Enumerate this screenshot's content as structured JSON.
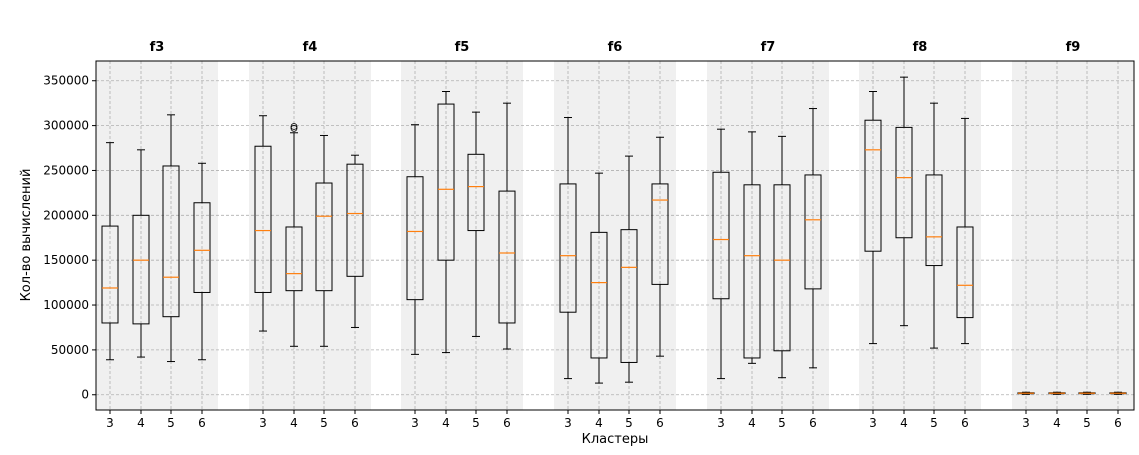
{
  "chart_data": {
    "type": "boxplot",
    "ylabel": "Кол-во вычислений",
    "xlabel": "Кластеры",
    "ylim": [
      -17000,
      372000
    ],
    "yticks": [
      0,
      50000,
      100000,
      150000,
      200000,
      250000,
      300000,
      350000
    ],
    "ytick_labels": [
      "0",
      "50000",
      "100000",
      "150000",
      "200000",
      "250000",
      "300000",
      "350000"
    ],
    "grid": true,
    "group_background": "#f0f0f0",
    "box_color": "#000000",
    "median_color": "#ff7f0e",
    "groups": [
      {
        "name": "f3",
        "categories": [
          "3",
          "4",
          "5",
          "6"
        ],
        "boxes": [
          {
            "whislo": 39000,
            "q1": 80000,
            "med": 119000,
            "q3": 188000,
            "whishi": 281000,
            "fliers": []
          },
          {
            "whislo": 42000,
            "q1": 79000,
            "med": 150000,
            "q3": 200000,
            "whishi": 273000,
            "fliers": []
          },
          {
            "whislo": 37000,
            "q1": 87000,
            "med": 131000,
            "q3": 255000,
            "whishi": 312000,
            "fliers": []
          },
          {
            "whislo": 39000,
            "q1": 114000,
            "med": 161000,
            "q3": 214000,
            "whishi": 258000,
            "fliers": []
          }
        ]
      },
      {
        "name": "f4",
        "categories": [
          "3",
          "4",
          "5",
          "6"
        ],
        "boxes": [
          {
            "whislo": 71000,
            "q1": 114000,
            "med": 183000,
            "q3": 277000,
            "whishi": 311000,
            "fliers": []
          },
          {
            "whislo": 54000,
            "q1": 116000,
            "med": 135000,
            "q3": 187000,
            "whishi": 292000,
            "fliers": [
              297000,
              299000
            ]
          },
          {
            "whislo": 54000,
            "q1": 116000,
            "med": 199000,
            "q3": 236000,
            "whishi": 289000,
            "fliers": []
          },
          {
            "whislo": 75000,
            "q1": 132000,
            "med": 202000,
            "q3": 257000,
            "whishi": 267000,
            "fliers": []
          }
        ]
      },
      {
        "name": "f5",
        "categories": [
          "3",
          "4",
          "5",
          "6"
        ],
        "boxes": [
          {
            "whislo": 45000,
            "q1": 106000,
            "med": 182000,
            "q3": 243000,
            "whishi": 301000,
            "fliers": []
          },
          {
            "whislo": 47000,
            "q1": 150000,
            "med": 229000,
            "q3": 324000,
            "whishi": 338000,
            "fliers": []
          },
          {
            "whislo": 65000,
            "q1": 183000,
            "med": 232000,
            "q3": 268000,
            "whishi": 315000,
            "fliers": []
          },
          {
            "whislo": 51000,
            "q1": 80000,
            "med": 158000,
            "q3": 227000,
            "whishi": 325000,
            "fliers": []
          }
        ]
      },
      {
        "name": "f6",
        "categories": [
          "3",
          "4",
          "5",
          "6"
        ],
        "boxes": [
          {
            "whislo": 18000,
            "q1": 92000,
            "med": 155000,
            "q3": 235000,
            "whishi": 309000,
            "fliers": []
          },
          {
            "whislo": 13000,
            "q1": 41000,
            "med": 125000,
            "q3": 181000,
            "whishi": 247000,
            "fliers": []
          },
          {
            "whislo": 14000,
            "q1": 36000,
            "med": 142000,
            "q3": 184000,
            "whishi": 266000,
            "fliers": []
          },
          {
            "whislo": 43000,
            "q1": 123000,
            "med": 217000,
            "q3": 235000,
            "whishi": 287000,
            "fliers": []
          }
        ]
      },
      {
        "name": "f7",
        "categories": [
          "3",
          "4",
          "5",
          "6"
        ],
        "boxes": [
          {
            "whislo": 18000,
            "q1": 107000,
            "med": 173000,
            "q3": 248000,
            "whishi": 296000,
            "fliers": []
          },
          {
            "whislo": 35000,
            "q1": 41000,
            "med": 155000,
            "q3": 234000,
            "whishi": 293000,
            "fliers": []
          },
          {
            "whislo": 19000,
            "q1": 49000,
            "med": 150000,
            "q3": 234000,
            "whishi": 288000,
            "fliers": []
          },
          {
            "whislo": 30000,
            "q1": 118000,
            "med": 195000,
            "q3": 245000,
            "whishi": 319000,
            "fliers": []
          }
        ]
      },
      {
        "name": "f8",
        "categories": [
          "3",
          "4",
          "5",
          "6"
        ],
        "boxes": [
          {
            "whislo": 57000,
            "q1": 160000,
            "med": 273000,
            "q3": 306000,
            "whishi": 338000,
            "fliers": []
          },
          {
            "whislo": 77000,
            "q1": 175000,
            "med": 242000,
            "q3": 298000,
            "whishi": 354000,
            "fliers": []
          },
          {
            "whislo": 52000,
            "q1": 144000,
            "med": 176000,
            "q3": 245000,
            "whishi": 325000,
            "fliers": []
          },
          {
            "whislo": 57000,
            "q1": 86000,
            "med": 122000,
            "q3": 187000,
            "whishi": 308000,
            "fliers": []
          }
        ]
      },
      {
        "name": "f9",
        "categories": [
          "3",
          "4",
          "5",
          "6"
        ],
        "boxes": [
          {
            "whislo": 500,
            "q1": 1200,
            "med": 1700,
            "q3": 2200,
            "whishi": 2800,
            "fliers": []
          },
          {
            "whislo": 500,
            "q1": 1200,
            "med": 1700,
            "q3": 2200,
            "whishi": 2800,
            "fliers": []
          },
          {
            "whislo": 500,
            "q1": 1200,
            "med": 1700,
            "q3": 2200,
            "whishi": 2800,
            "fliers": []
          },
          {
            "whislo": 500,
            "q1": 1200,
            "med": 1700,
            "q3": 2200,
            "whishi": 2800,
            "fliers": []
          }
        ]
      }
    ]
  }
}
